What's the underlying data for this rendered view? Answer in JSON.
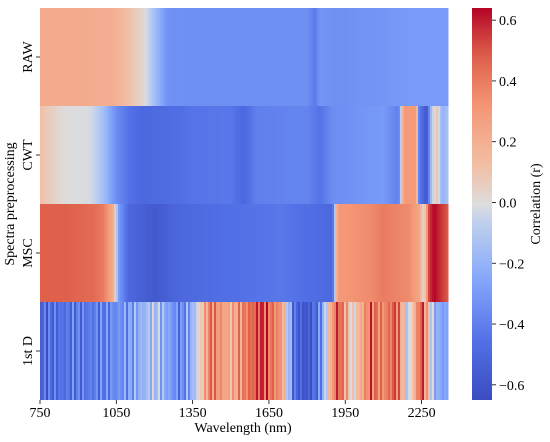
{
  "chart_data": {
    "type": "heatmap",
    "xlabel": "Wavelength (nm)",
    "ylabel": "Spectra preprocessing",
    "xlim": [
      750,
      2350
    ],
    "x_ticks": [
      750,
      1050,
      1350,
      1650,
      1950,
      2250
    ],
    "rows": [
      "RAW",
      "CWT",
      "MSC",
      "1st D"
    ],
    "colorbar": {
      "label": "Correlation (r)",
      "range": [
        -0.65,
        0.64
      ],
      "ticks": [
        "0.6",
        "0.4",
        "0.2",
        "0.0",
        "−0.2",
        "−0.4",
        "−0.6"
      ],
      "tick_values": [
        0.6,
        0.4,
        0.2,
        0.0,
        -0.2,
        -0.4,
        -0.6
      ],
      "colormap": "coolwarm"
    },
    "series": [
      {
        "name": "RAW",
        "profile": [
          [
            750,
            0.22
          ],
          [
            900,
            0.22
          ],
          [
            1040,
            0.2
          ],
          [
            1100,
            0.12
          ],
          [
            1160,
            0.02
          ],
          [
            1200,
            -0.15
          ],
          [
            1250,
            -0.33
          ],
          [
            1300,
            -0.34
          ],
          [
            1500,
            -0.34
          ],
          [
            1800,
            -0.34
          ],
          [
            1830,
            -0.42
          ],
          [
            1850,
            -0.32
          ],
          [
            1900,
            -0.34
          ],
          [
            2100,
            -0.32
          ],
          [
            2200,
            -0.3
          ],
          [
            2350,
            -0.3
          ]
        ]
      },
      {
        "name": "CWT",
        "profile": [
          [
            750,
            0.12
          ],
          [
            800,
            0.05
          ],
          [
            850,
            0.0
          ],
          [
            950,
            -0.02
          ],
          [
            1000,
            -0.15
          ],
          [
            1050,
            -0.35
          ],
          [
            1100,
            -0.45
          ],
          [
            1150,
            -0.5
          ],
          [
            1250,
            -0.48
          ],
          [
            1350,
            -0.44
          ],
          [
            1500,
            -0.43
          ],
          [
            1550,
            -0.5
          ],
          [
            1600,
            -0.4
          ],
          [
            1800,
            -0.38
          ],
          [
            1850,
            -0.45
          ],
          [
            1900,
            -0.35
          ],
          [
            2100,
            -0.3
          ],
          [
            2160,
            -0.4
          ],
          [
            2180,
            0.3
          ],
          [
            2230,
            0.3
          ],
          [
            2240,
            -0.4
          ],
          [
            2270,
            -0.6
          ],
          [
            2290,
            -0.1
          ],
          [
            2310,
            0.1
          ],
          [
            2330,
            -0.2
          ],
          [
            2350,
            -0.15
          ]
        ]
      },
      {
        "name": "MSC",
        "profile": [
          [
            750,
            0.48
          ],
          [
            850,
            0.48
          ],
          [
            960,
            0.45
          ],
          [
            1000,
            0.4
          ],
          [
            1020,
            0.3
          ],
          [
            1040,
            0.2
          ],
          [
            1060,
            -0.3
          ],
          [
            1100,
            -0.5
          ],
          [
            1200,
            -0.58
          ],
          [
            1300,
            -0.5
          ],
          [
            1400,
            -0.48
          ],
          [
            1550,
            -0.45
          ],
          [
            1700,
            -0.43
          ],
          [
            1900,
            -0.5
          ],
          [
            1920,
            0.3
          ],
          [
            2050,
            0.35
          ],
          [
            2100,
            0.4
          ],
          [
            2200,
            0.35
          ],
          [
            2240,
            0.25
          ],
          [
            2260,
            0.0
          ],
          [
            2280,
            0.55
          ],
          [
            2300,
            0.64
          ],
          [
            2330,
            0.55
          ],
          [
            2350,
            0.5
          ]
        ]
      },
      {
        "name": "1st D",
        "profile": [
          [
            750,
            -0.5
          ],
          [
            850,
            -0.45
          ],
          [
            1000,
            -0.4
          ],
          [
            1100,
            -0.3
          ],
          [
            1200,
            -0.1
          ],
          [
            1300,
            -0.4
          ],
          [
            1350,
            -0.2
          ],
          [
            1420,
            0.4
          ],
          [
            1500,
            0.2
          ],
          [
            1560,
            0.4
          ],
          [
            1620,
            0.55
          ],
          [
            1700,
            0.3
          ],
          [
            1750,
            -0.5
          ],
          [
            1800,
            -0.6
          ],
          [
            1850,
            -0.4
          ],
          [
            1920,
            0.55
          ],
          [
            1980,
            0.0
          ],
          [
            2050,
            0.45
          ],
          [
            2100,
            0.35
          ],
          [
            2150,
            0.5
          ],
          [
            2200,
            -0.1
          ],
          [
            2250,
            0.55
          ],
          [
            2300,
            -0.2
          ],
          [
            2350,
            -0.3
          ]
        ]
      }
    ]
  }
}
